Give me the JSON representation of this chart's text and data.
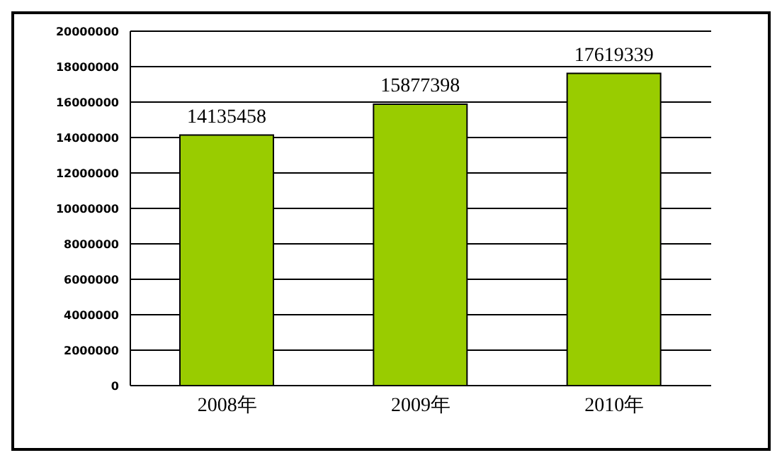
{
  "chart_data": {
    "type": "bar",
    "categories": [
      "2008年",
      "2009年",
      "2010年"
    ],
    "values": [
      14135458,
      15877398,
      17619339
    ],
    "color": "#99cc00",
    "ylim": [
      0,
      20000000
    ],
    "yticks": [
      0,
      2000000,
      4000000,
      6000000,
      8000000,
      10000000,
      12000000,
      14000000,
      16000000,
      18000000,
      20000000
    ],
    "grid": "y",
    "data_labels": true
  }
}
